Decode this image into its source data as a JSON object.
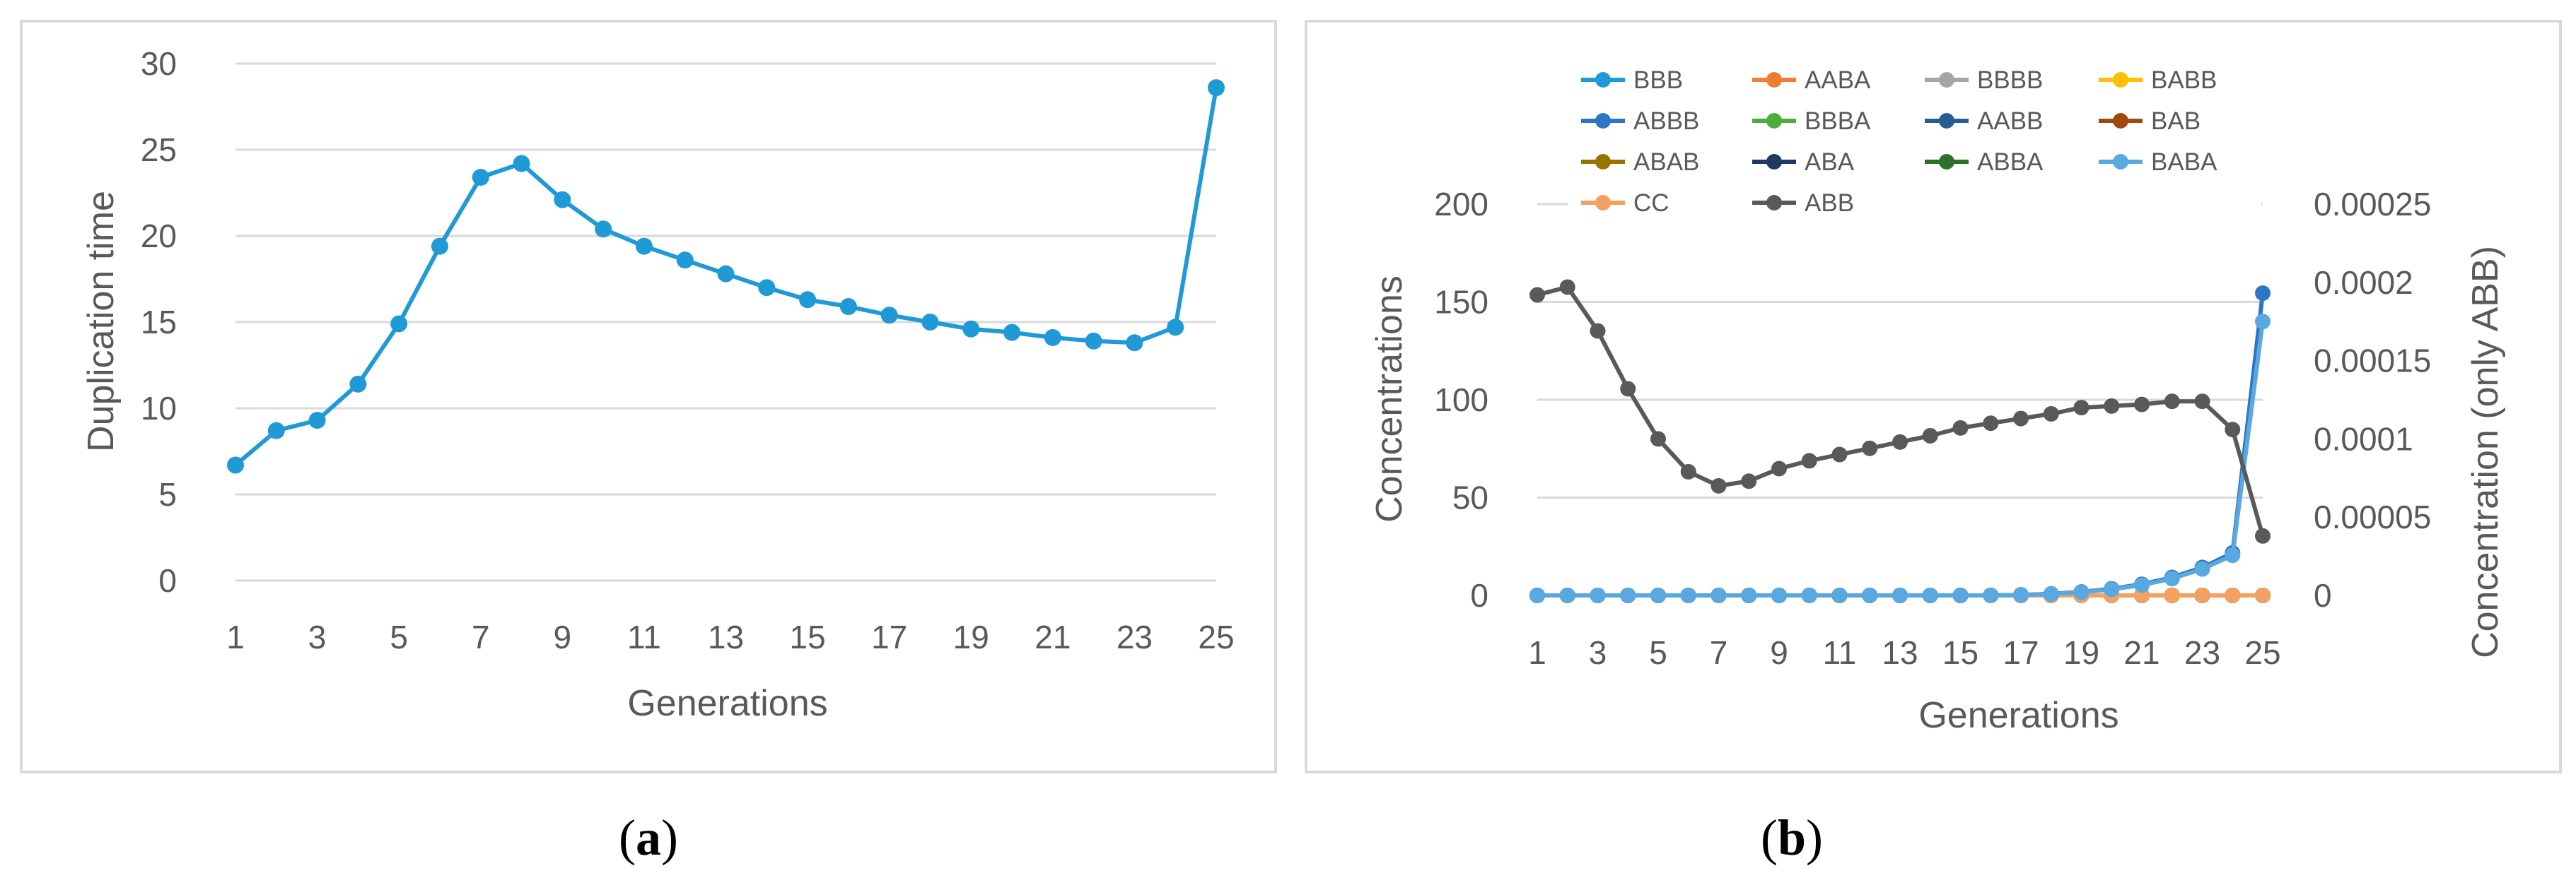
{
  "colors": {
    "gridline": "#d9d9d9",
    "panel_border": "#d9d9d9",
    "axis_text": "#595959"
  },
  "chart_data": [
    {
      "panel": "a",
      "type": "line",
      "caption_open": "(",
      "caption_letter": "a",
      "caption_close": ")",
      "xlabel": "Generations",
      "ylabel": "Duplication time",
      "xlim": [
        1,
        25
      ],
      "ylim": [
        0,
        30
      ],
      "x_ticks": [
        "1",
        "3",
        "5",
        "7",
        "9",
        "11",
        "13",
        "15",
        "17",
        "19",
        "21",
        "23",
        "25"
      ],
      "y_ticks": [
        "0",
        "5",
        "10",
        "15",
        "20",
        "25",
        "30"
      ],
      "gridlines": true,
      "series": [
        {
          "name": "Duplication time",
          "color": "#1f9ad6",
          "x": [
            1,
            2,
            3,
            4,
            5,
            6,
            7,
            8,
            9,
            10,
            11,
            12,
            13,
            14,
            15,
            16,
            17,
            18,
            19,
            20,
            21,
            22,
            23,
            24,
            25
          ],
          "values": [
            6.7,
            8.7,
            9.3,
            11.4,
            14.9,
            19.4,
            23.4,
            24.2,
            22.1,
            20.4,
            19.4,
            18.6,
            17.8,
            17.0,
            16.3,
            15.9,
            15.4,
            15.0,
            14.6,
            14.4,
            14.1,
            13.9,
            13.8,
            14.7,
            28.6
          ]
        }
      ]
    },
    {
      "panel": "b",
      "type": "line",
      "caption_open": "(",
      "caption_letter": "b",
      "caption_close": ")",
      "xlabel": "Generations",
      "ylabel": "Concentrations",
      "y2label": "Concentration (only ABB)",
      "xlim": [
        1,
        25
      ],
      "ylim": [
        0,
        200
      ],
      "y2lim": [
        0,
        0.00025
      ],
      "x_ticks": [
        "1",
        "3",
        "5",
        "7",
        "9",
        "11",
        "13",
        "15",
        "17",
        "19",
        "21",
        "23",
        "25"
      ],
      "y_ticks": [
        "0",
        "50",
        "100",
        "150",
        "200"
      ],
      "y2_ticks": [
        "0",
        "0.00005",
        "0.0001",
        "0.00015",
        "0.0002",
        "0.00025"
      ],
      "gridlines": true,
      "legend_position": "top",
      "series": [
        {
          "name": "BBB",
          "color": "#1f9ad6",
          "axis": "left",
          "x": [
            1,
            2,
            3,
            4,
            5,
            6,
            7,
            8,
            9,
            10,
            11,
            12,
            13,
            14,
            15,
            16,
            17,
            18,
            19,
            20,
            21,
            22,
            23,
            24,
            25
          ],
          "values": [
            0,
            0,
            0,
            0,
            0,
            0,
            0,
            0,
            0,
            0,
            0,
            0,
            0,
            0,
            0,
            0,
            0,
            0,
            0,
            0,
            0,
            0,
            0,
            0,
            0
          ]
        },
        {
          "name": "AABA",
          "color": "#ed7d31",
          "axis": "left",
          "x": [
            1,
            2,
            3,
            4,
            5,
            6,
            7,
            8,
            9,
            10,
            11,
            12,
            13,
            14,
            15,
            16,
            17,
            18,
            19,
            20,
            21,
            22,
            23,
            24,
            25
          ],
          "values": [
            0,
            0,
            0,
            0,
            0,
            0,
            0,
            0,
            0,
            0,
            0,
            0,
            0,
            0,
            0,
            0,
            0,
            0,
            0,
            0,
            0,
            0,
            0,
            0,
            0
          ]
        },
        {
          "name": "BBBB",
          "color": "#a5a5a5",
          "axis": "left",
          "x": [
            1,
            2,
            3,
            4,
            5,
            6,
            7,
            8,
            9,
            10,
            11,
            12,
            13,
            14,
            15,
            16,
            17,
            18,
            19,
            20,
            21,
            22,
            23,
            24,
            25
          ],
          "values": [
            0,
            0,
            0,
            0,
            0,
            0,
            0,
            0,
            0,
            0,
            0,
            0,
            0,
            0,
            0,
            0,
            0,
            0,
            0,
            0,
            0,
            0,
            0,
            0,
            0
          ]
        },
        {
          "name": "BABB",
          "color": "#ffc000",
          "axis": "left",
          "x": [
            1,
            2,
            3,
            4,
            5,
            6,
            7,
            8,
            9,
            10,
            11,
            12,
            13,
            14,
            15,
            16,
            17,
            18,
            19,
            20,
            21,
            22,
            23,
            24,
            25
          ],
          "values": [
            0,
            0,
            0,
            0,
            0,
            0,
            0,
            0,
            0,
            0,
            0,
            0,
            0,
            0,
            0,
            0,
            0,
            0,
            0,
            0,
            0,
            0,
            0,
            0,
            0
          ]
        },
        {
          "name": "ABBB",
          "color": "#2f75c6",
          "axis": "left",
          "x": [
            1,
            2,
            3,
            4,
            5,
            6,
            7,
            8,
            9,
            10,
            11,
            12,
            13,
            14,
            15,
            16,
            17,
            18,
            19,
            20,
            21,
            22,
            23,
            24,
            25
          ],
          "values": [
            0,
            0,
            0,
            0,
            0,
            0,
            0,
            0,
            0,
            0,
            0,
            0,
            0,
            0,
            0,
            0,
            0.3,
            0.8,
            1.8,
            3.4,
            5.7,
            9.2,
            14.3,
            21.7,
            154.5
          ]
        },
        {
          "name": "BBBA",
          "color": "#4bae3c",
          "axis": "left",
          "x": [
            1,
            2,
            3,
            4,
            5,
            6,
            7,
            8,
            9,
            10,
            11,
            12,
            13,
            14,
            15,
            16,
            17,
            18,
            19,
            20,
            21,
            22,
            23,
            24,
            25
          ],
          "values": [
            0,
            0,
            0,
            0,
            0,
            0,
            0,
            0,
            0,
            0,
            0,
            0,
            0,
            0,
            0,
            0,
            0,
            0,
            0,
            0,
            0,
            0,
            0,
            0,
            0
          ]
        },
        {
          "name": "AABB",
          "color": "#255e91",
          "axis": "left",
          "x": [
            1,
            2,
            3,
            4,
            5,
            6,
            7,
            8,
            9,
            10,
            11,
            12,
            13,
            14,
            15,
            16,
            17,
            18,
            19,
            20,
            21,
            22,
            23,
            24,
            25
          ],
          "values": [
            0,
            0,
            0,
            0,
            0,
            0,
            0,
            0,
            0,
            0,
            0,
            0,
            0,
            0,
            0,
            0,
            0,
            0,
            0,
            0,
            0,
            0,
            0,
            0,
            0
          ]
        },
        {
          "name": "BAB",
          "color": "#9e480e",
          "axis": "left",
          "x": [
            1,
            2,
            3,
            4,
            5,
            6,
            7,
            8,
            9,
            10,
            11,
            12,
            13,
            14,
            15,
            16,
            17,
            18,
            19,
            20,
            21,
            22,
            23,
            24,
            25
          ],
          "values": [
            0,
            0,
            0,
            0,
            0,
            0,
            0,
            0,
            0,
            0,
            0,
            0,
            0,
            0,
            0,
            0,
            0,
            0,
            0,
            0,
            0,
            0,
            0,
            0,
            0
          ]
        },
        {
          "name": "ABAB",
          "color": "#997300",
          "axis": "left",
          "x": [
            1,
            2,
            3,
            4,
            5,
            6,
            7,
            8,
            9,
            10,
            11,
            12,
            13,
            14,
            15,
            16,
            17,
            18,
            19,
            20,
            21,
            22,
            23,
            24,
            25
          ],
          "values": [
            0,
            0,
            0,
            0,
            0,
            0,
            0,
            0,
            0,
            0,
            0,
            0,
            0,
            0,
            0,
            0,
            0,
            0,
            0,
            0,
            0,
            0,
            0,
            0,
            0
          ]
        },
        {
          "name": "ABA",
          "color": "#203864",
          "axis": "left",
          "x": [
            1,
            2,
            3,
            4,
            5,
            6,
            7,
            8,
            9,
            10,
            11,
            12,
            13,
            14,
            15,
            16,
            17,
            18,
            19,
            20,
            21,
            22,
            23,
            24,
            25
          ],
          "values": [
            0,
            0,
            0,
            0,
            0,
            0,
            0,
            0,
            0,
            0,
            0,
            0,
            0,
            0,
            0,
            0,
            0,
            0,
            0,
            0,
            0,
            0,
            0,
            0,
            0
          ]
        },
        {
          "name": "ABBA",
          "color": "#2e6f2a",
          "axis": "left",
          "x": [
            1,
            2,
            3,
            4,
            5,
            6,
            7,
            8,
            9,
            10,
            11,
            12,
            13,
            14,
            15,
            16,
            17,
            18,
            19,
            20,
            21,
            22,
            23,
            24,
            25
          ],
          "values": [
            0,
            0,
            0,
            0,
            0,
            0,
            0,
            0,
            0,
            0,
            0,
            0,
            0,
            0,
            0,
            0,
            0,
            0,
            0,
            0,
            0,
            0,
            0,
            0,
            0
          ]
        },
        {
          "name": "BABA",
          "color": "#5aa8e0",
          "axis": "left",
          "x": [
            1,
            2,
            3,
            4,
            5,
            6,
            7,
            8,
            9,
            10,
            11,
            12,
            13,
            14,
            15,
            16,
            17,
            18,
            19,
            20,
            21,
            22,
            23,
            24,
            25
          ],
          "values": [
            0,
            0,
            0,
            0,
            0,
            0,
            0,
            0,
            0,
            0,
            0,
            0,
            0,
            0,
            0,
            0,
            0.3,
            0.7,
            1.6,
            3.1,
            5.3,
            8.6,
            13.5,
            20.5,
            140.0
          ]
        },
        {
          "name": "CC",
          "color": "#f4a063",
          "axis": "left",
          "x": [
            1,
            2,
            3,
            4,
            5,
            6,
            7,
            8,
            9,
            10,
            11,
            12,
            13,
            14,
            15,
            16,
            17,
            18,
            19,
            20,
            21,
            22,
            23,
            24,
            25
          ],
          "values": [
            0,
            0,
            0,
            0,
            0,
            0,
            0,
            0,
            0,
            0,
            0,
            0,
            0,
            0,
            0,
            0,
            0,
            0,
            0,
            0,
            0,
            0,
            0,
            0,
            0
          ]
        },
        {
          "name": "ABB",
          "color": "#595959",
          "axis": "right",
          "x": [
            1,
            2,
            3,
            4,
            5,
            6,
            7,
            8,
            9,
            10,
            11,
            12,
            13,
            14,
            15,
            16,
            17,
            18,
            19,
            20,
            21,
            22,
            23,
            24,
            25
          ],
          "values": [
            0.000192,
            0.000197,
            0.000169,
            0.000132,
            0.0001,
            7.9e-05,
            7e-05,
            7.3e-05,
            8.1e-05,
            8.6e-05,
            9e-05,
            9.4e-05,
            9.8e-05,
            0.000102,
            0.000107,
            0.00011,
            0.000113,
            0.000116,
            0.00012,
            0.000121,
            0.000122,
            0.000124,
            0.000124,
            0.000106,
            3.8e-05
          ]
        }
      ]
    }
  ]
}
